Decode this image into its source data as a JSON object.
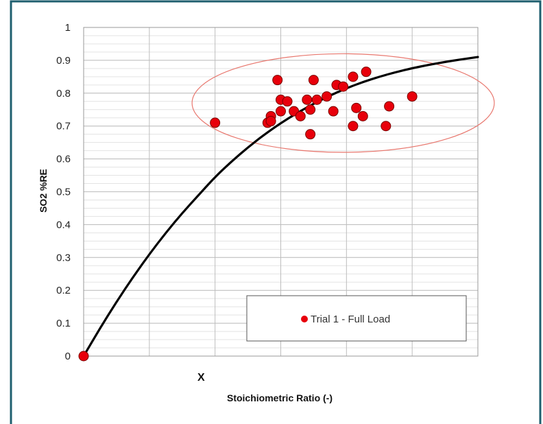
{
  "chart_data": {
    "type": "scatter",
    "title": "",
    "xlabel": "Stoichiometric Ratio (-)",
    "ylabel": "SO2 %RE",
    "y_ticks": [
      "0",
      "0.1",
      "0.2",
      "0.3",
      "0.4",
      "0.5",
      "0.6",
      "0.7",
      "0.8",
      "0.9",
      "1"
    ],
    "xlim": [
      0,
      6
    ],
    "ylim": [
      0,
      1
    ],
    "grid": true,
    "x_marker_label": "X",
    "legend": {
      "position": "bottom-right",
      "entries": [
        "Trial  1 - Full Load"
      ]
    },
    "series": [
      {
        "name": "Trial  1 - Full Load",
        "color": "#e8000b",
        "x": [
          0,
          2.0,
          2.8,
          2.95,
          2.85,
          3.0,
          3.1,
          3.2,
          3.3,
          3.45,
          3.5,
          3.55,
          3.45,
          3.4,
          3.7,
          3.8,
          3.85,
          3.95,
          4.1,
          4.1,
          4.15,
          4.25,
          4.3,
          4.6,
          4.65,
          5.0,
          2.85,
          3.0
        ],
        "y": [
          0,
          0.71,
          0.71,
          0.84,
          0.73,
          0.78,
          0.775,
          0.745,
          0.73,
          0.75,
          0.84,
          0.78,
          0.675,
          0.78,
          0.79,
          0.745,
          0.825,
          0.82,
          0.85,
          0.7,
          0.755,
          0.73,
          0.865,
          0.7,
          0.76,
          0.79,
          0.715,
          0.745
        ]
      }
    ],
    "trendline": {
      "color": "#000000",
      "x": [
        0,
        0.25,
        0.5,
        0.75,
        1.0,
        1.25,
        1.5,
        1.75,
        2.0,
        2.25,
        2.5,
        2.75,
        3.0,
        3.25,
        3.5,
        3.75,
        4.0,
        4.25,
        4.5,
        4.75,
        5.0,
        5.25,
        5.5,
        5.75,
        6.0
      ],
      "y": [
        0,
        0.085,
        0.165,
        0.24,
        0.31,
        0.375,
        0.435,
        0.49,
        0.545,
        0.592,
        0.635,
        0.674,
        0.709,
        0.74,
        0.768,
        0.793,
        0.815,
        0.834,
        0.85,
        0.864,
        0.876,
        0.886,
        0.895,
        0.903,
        0.91
      ]
    },
    "highlight_ellipse": {
      "color": "#e8776e",
      "center": [
        3.95,
        0.77
      ],
      "radius_x": 2.3,
      "radius_y": 0.15
    }
  }
}
